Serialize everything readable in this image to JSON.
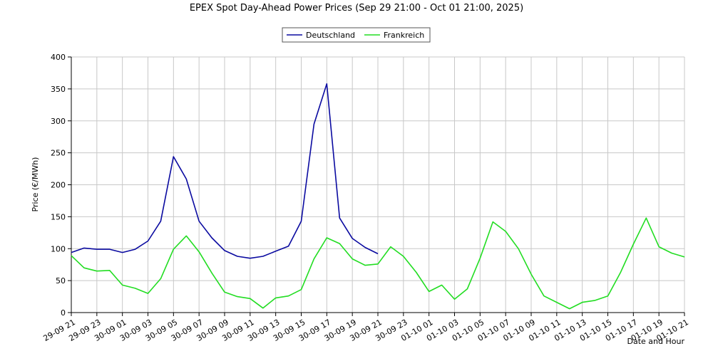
{
  "chart_data": {
    "type": "line",
    "title": "EPEX Spot Day-Ahead Power Prices (Sep 29 21:00 - Oct 01 21:00, 2025)",
    "xlabel": "Date and Hour",
    "ylabel": "Price (€/MWh)",
    "ylim": [
      0,
      400
    ],
    "yticks": [
      0,
      50,
      100,
      150,
      200,
      250,
      300,
      350,
      400
    ],
    "xticks": [
      "29-09 21",
      "29-09 23",
      "30-09 01",
      "30-09 03",
      "30-09 05",
      "30-09 07",
      "30-09 09",
      "30-09 11",
      "30-09 13",
      "30-09 15",
      "30-09 17",
      "30-09 19",
      "30-09 21",
      "30-09 23",
      "01-10 01",
      "01-10 03",
      "01-10 05",
      "01-10 07",
      "01-10 09",
      "01-10 11",
      "01-10 13",
      "01-10 15",
      "01-10 17",
      "01-10 19",
      "01-10 21"
    ],
    "grid": true,
    "legend_position": "top-center",
    "series": [
      {
        "name": "Deutschland",
        "color": "#0a0aa0",
        "values": [
          94,
          101,
          99,
          99,
          94,
          99,
          112,
          143,
          244,
          209,
          143,
          117,
          97,
          88,
          85,
          88,
          96,
          104,
          143,
          295,
          358,
          148,
          116,
          102,
          92
        ]
      },
      {
        "name": "Frankreich",
        "color": "#22dd22",
        "values": [
          89,
          70,
          65,
          66,
          43,
          38,
          30,
          53,
          99,
          120,
          95,
          62,
          32,
          25,
          22,
          7,
          23,
          26,
          36,
          84,
          117,
          108,
          84,
          74,
          76,
          103,
          88,
          63,
          33,
          43,
          21,
          37,
          85,
          142,
          127,
          100,
          60,
          26,
          16,
          6,
          16,
          19,
          26,
          63,
          107,
          148,
          103,
          93,
          87
        ]
      }
    ]
  }
}
